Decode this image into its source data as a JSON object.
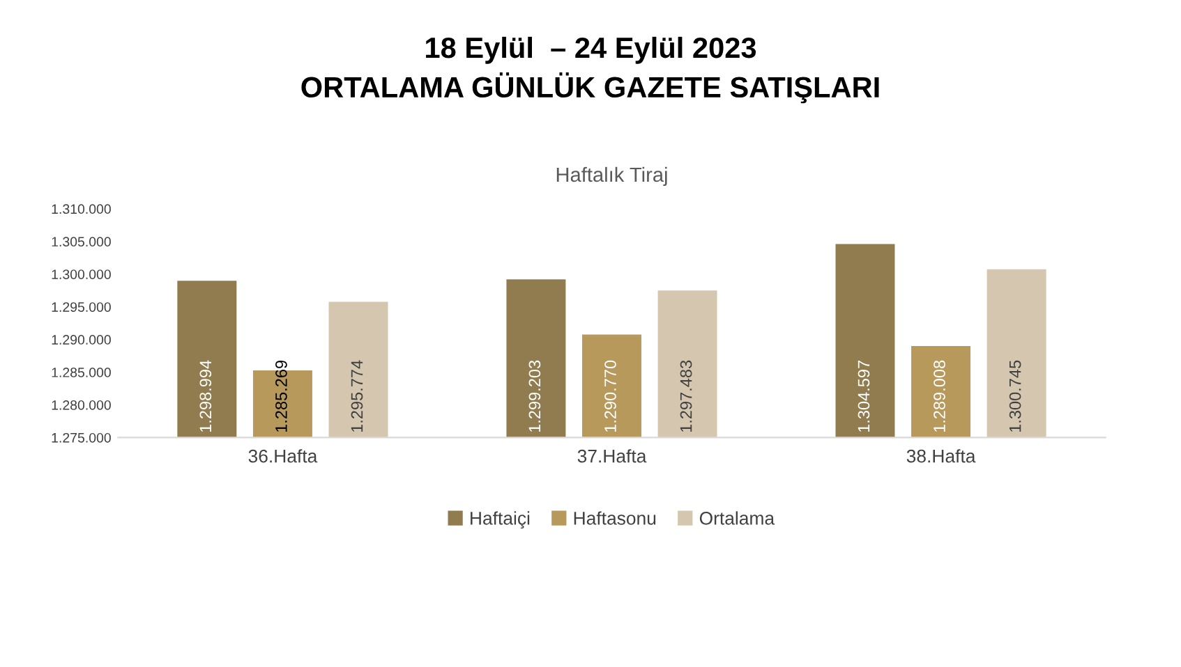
{
  "chart_data": {
    "type": "bar",
    "title": "18 Eylül  – 24 Eylül 2023\nORTALAMA GÜNLÜK GAZETE SATIŞLARI",
    "subtitle": "Haftalık Tiraj",
    "categories": [
      "36.Hafta",
      "37.Hafta",
      "38.Hafta"
    ],
    "series": [
      {
        "name": "Haftaiçi",
        "color": "#917c4f",
        "values": [
          1298994,
          1299203,
          1304597
        ],
        "value_labels": [
          "1.298.994",
          "1.299.203",
          "1.304.597"
        ]
      },
      {
        "name": "Haftasonu",
        "color": "#b8995c",
        "values": [
          1285269,
          1290770,
          1289008
        ],
        "value_labels": [
          "1.285.269",
          "1.290.770",
          "1.289.008"
        ]
      },
      {
        "name": "Ortalama",
        "color": "#d5c6af",
        "values": [
          1295774,
          1297483,
          1300745
        ],
        "value_labels": [
          "1.295.774",
          "1.297.483",
          "1.300.745"
        ]
      }
    ],
    "ylim": [
      1275000,
      1310000
    ],
    "yticks": [
      {
        "value": 1275000,
        "label": "1.275.000"
      },
      {
        "value": 1280000,
        "label": "1.280.000"
      },
      {
        "value": 1285000,
        "label": "1.285.000"
      },
      {
        "value": 1290000,
        "label": "1.290.000"
      },
      {
        "value": 1295000,
        "label": "1.295.000"
      },
      {
        "value": 1300000,
        "label": "1.300.000"
      },
      {
        "value": 1305000,
        "label": "1.305.000"
      },
      {
        "value": 1310000,
        "label": "1.310.000"
      }
    ],
    "grid": false,
    "legend": "bottom"
  }
}
